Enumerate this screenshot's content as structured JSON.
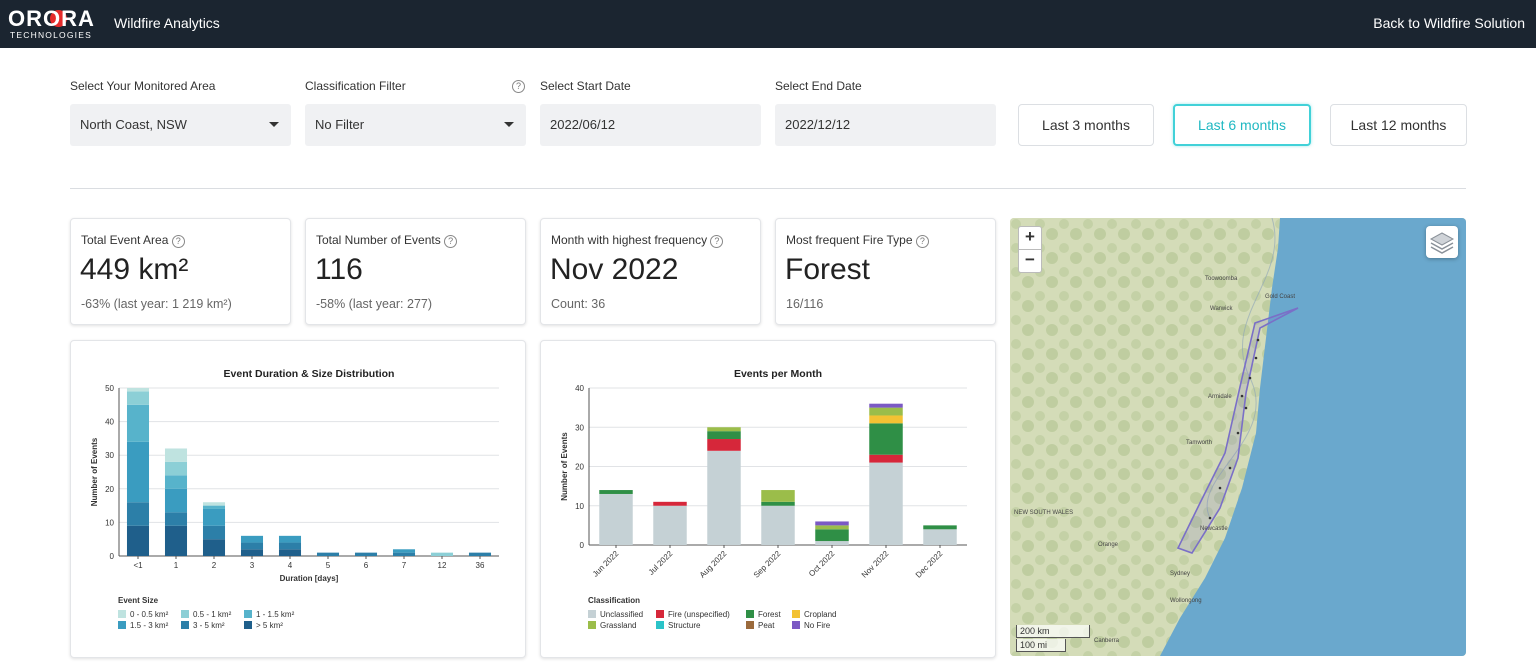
{
  "header": {
    "logo_main": "ORORA",
    "logo_sub": "TECHNOLOGIES",
    "app_title": "Wildfire Analytics",
    "back_link": "Back to Wildfire Solution"
  },
  "filters": {
    "area_label": "Select Your Monitored Area",
    "area_value": "North Coast, NSW",
    "classification_label": "Classification Filter",
    "classification_value": "No Filter",
    "start_label": "Select Start Date",
    "start_value": "2022/06/12",
    "end_label": "Select End Date",
    "end_value": "2022/12/12",
    "help_glyph": "?",
    "ranges": [
      "Last 3 months",
      "Last 6 months",
      "Last 12 months"
    ],
    "active_range": "Last 6 months"
  },
  "kpis": [
    {
      "label": "Total Event Area",
      "value": "449 km²",
      "sub": "-63% (last year: 1 219 km²)"
    },
    {
      "label": "Total Number of Events",
      "value": "116",
      "sub": "-58% (last year: 277)"
    },
    {
      "label": "Month with highest frequency",
      "value": "Nov 2022",
      "sub": "Count: 36"
    },
    {
      "label": "Most frequent Fire Type",
      "value": "Forest",
      "sub": "16/116"
    }
  ],
  "map": {
    "zoom_in": "+",
    "zoom_out": "−",
    "scale_km": "200 km",
    "scale_mi": "100 mi",
    "labels": [
      "Toowoomba",
      "Gold Coast",
      "Warwick",
      "Armidale",
      "Tamworth",
      "NEW SOUTH WALES",
      "Orange",
      "Sydney",
      "Wollongong",
      "Canberra",
      "Newcastle"
    ],
    "water_color": "#6aa8cd",
    "land_color": "#cfd7b5",
    "region_color": "#7a6fc7"
  },
  "chart_data": [
    {
      "type": "bar",
      "stacked": true,
      "title": "Event Duration & Size Distribution",
      "xlabel": "Duration [days]",
      "ylabel": "Number of Events",
      "ylim": [
        0,
        50
      ],
      "yticks": [
        0,
        10,
        20,
        30,
        40,
        50
      ],
      "categories": [
        "<1",
        "1",
        "2",
        "3",
        "4",
        "5",
        "6",
        "7",
        "12",
        "36"
      ],
      "legend_title": "Event Size",
      "legend_position": "bottom",
      "grid": true,
      "series": [
        {
          "name": "> 5 km²",
          "color": "#1f5f8b",
          "values": [
            9,
            9,
            5,
            2,
            2,
            0,
            0,
            0,
            0,
            0
          ]
        },
        {
          "name": "3 - 5 km²",
          "color": "#2c7fa8",
          "values": [
            7,
            4,
            4,
            2,
            2,
            1,
            1,
            1,
            0,
            1
          ]
        },
        {
          "name": "1.5 - 3 km²",
          "color": "#3a9cc0",
          "values": [
            18,
            7,
            5,
            2,
            2,
            0,
            0,
            1,
            0,
            0
          ]
        },
        {
          "name": "1 - 1.5 km²",
          "color": "#57b3cb",
          "values": [
            11,
            4,
            1,
            0,
            0,
            0,
            0,
            0,
            0,
            0
          ]
        },
        {
          "name": "0.5 - 1 km²",
          "color": "#8ccfd6",
          "values": [
            4,
            4,
            0,
            0,
            0,
            0,
            0,
            0,
            1,
            0
          ]
        },
        {
          "name": "0 - 0.5 km²",
          "color": "#bfe3e0",
          "values": [
            1,
            4,
            1,
            0,
            0,
            0,
            0,
            0,
            0,
            0
          ]
        }
      ]
    },
    {
      "type": "bar",
      "stacked": true,
      "title": "Events per Month",
      "xlabel": "",
      "ylabel": "Number of Events",
      "ylim": [
        0,
        40
      ],
      "yticks": [
        0,
        10,
        20,
        30,
        40
      ],
      "categories": [
        "Jun 2022",
        "Jul 2022",
        "Aug 2022",
        "Sep 2022",
        "Oct 2022",
        "Nov 2022",
        "Dec 2022"
      ],
      "legend_title": "Classification",
      "legend_position": "bottom",
      "grid": true,
      "series": [
        {
          "name": "Unclassified",
          "color": "#c5d1d5",
          "values": [
            13,
            10,
            24,
            10,
            1,
            21,
            4
          ]
        },
        {
          "name": "Fire (unspecified)",
          "color": "#d6273a",
          "values": [
            0,
            1,
            3,
            0,
            0,
            2,
            0
          ]
        },
        {
          "name": "Forest",
          "color": "#2f8f46",
          "values": [
            1,
            0,
            2,
            1,
            3,
            8,
            1
          ]
        },
        {
          "name": "Cropland",
          "color": "#f3c233",
          "values": [
            0,
            0,
            0,
            0,
            0,
            2,
            0
          ]
        },
        {
          "name": "Grassland",
          "color": "#9bbd4a",
          "values": [
            0,
            0,
            1,
            3,
            1,
            2,
            0
          ]
        },
        {
          "name": "Structure",
          "color": "#2bc3c8",
          "values": [
            0,
            0,
            0,
            0,
            0,
            0,
            0
          ]
        },
        {
          "name": "Peat",
          "color": "#9b6a3c",
          "values": [
            0,
            0,
            0,
            0,
            0,
            0,
            0
          ]
        },
        {
          "name": "No Fire",
          "color": "#7b59c4",
          "values": [
            0,
            0,
            0,
            0,
            1,
            1,
            0
          ]
        }
      ]
    }
  ]
}
